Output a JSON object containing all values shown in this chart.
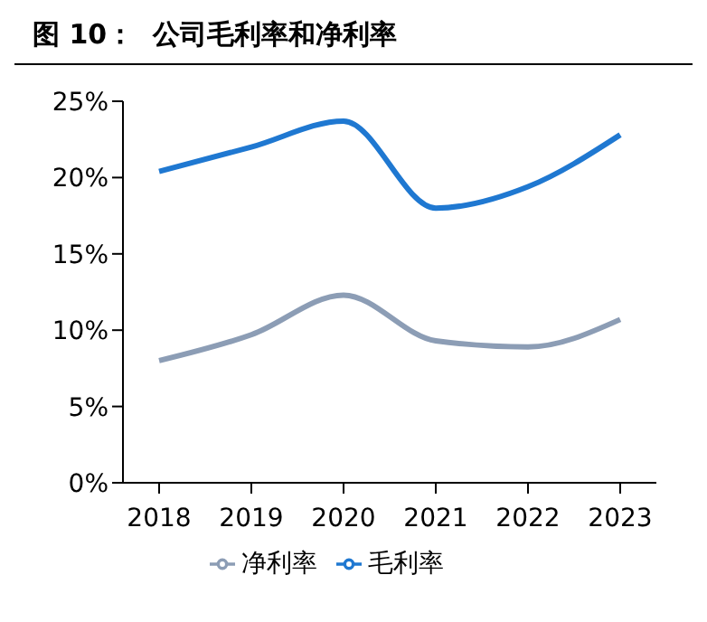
{
  "chart_data": {
    "type": "line",
    "title": "图 10：  公司毛利率和净利率",
    "categories": [
      "2018",
      "2019",
      "2020",
      "2021",
      "2022",
      "2023"
    ],
    "series": [
      {
        "name": "毛利率",
        "color": "#1f78d1",
        "values": [
          20.4,
          22.0,
          23.7,
          18.0,
          19.4,
          22.8
        ]
      },
      {
        "name": "净利率",
        "color": "#8c9db5",
        "values": [
          8.0,
          9.7,
          12.3,
          9.3,
          8.9,
          10.7
        ]
      }
    ],
    "ylim": [
      0,
      25
    ],
    "yticks": [
      {
        "value": 0,
        "label": "0%"
      },
      {
        "value": 5,
        "label": "5%"
      },
      {
        "value": 10,
        "label": "10%"
      },
      {
        "value": 15,
        "label": "15%"
      },
      {
        "value": 20,
        "label": "20%"
      },
      {
        "value": 25,
        "label": "25%"
      }
    ],
    "grid": false,
    "legend": "bottom",
    "marker": "none",
    "line_style": "solid"
  }
}
